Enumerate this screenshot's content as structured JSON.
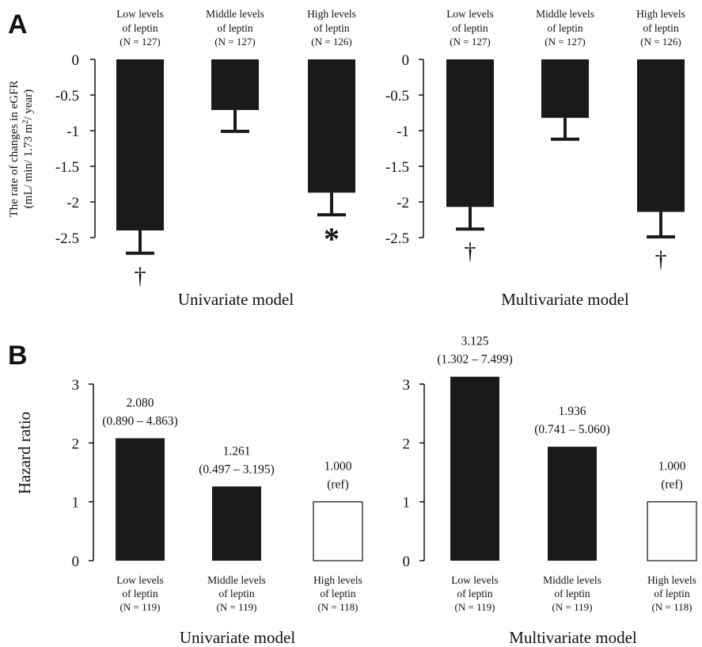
{
  "panels": {
    "A": {
      "label": "A",
      "ylabel_line1": "The rate of changes in eGFR",
      "ylabel_line2": "(mL/ min/ 1.73 m",
      "ylabel_sup": "2",
      "ylabel_line2_end": "/ year)"
    },
    "B": {
      "label": "B",
      "ylabel": "Hazard ratio"
    }
  },
  "chart_data": [
    {
      "type": "bar",
      "panel": "A",
      "title": "Univariate model",
      "categories": [
        {
          "line1": "Low levels",
          "line2": "of leptin",
          "n": "(N = 127)"
        },
        {
          "line1": "Middle levels",
          "line2": "of leptin",
          "n": "(N = 127)"
        },
        {
          "line1": "High levels",
          "line2": "of leptin",
          "n": "(N = 126)"
        }
      ],
      "values": [
        -2.4,
        -0.71,
        -1.87
      ],
      "error_end": [
        -2.72,
        -1.01,
        -2.18
      ],
      "markers": [
        "†",
        "",
        "*"
      ],
      "yticks": [
        "0",
        "-0.5",
        "-1",
        "-1.5",
        "-2",
        "-2.5"
      ],
      "ylim": [
        -2.5,
        0
      ],
      "bar_color": "#1a1a1a"
    },
    {
      "type": "bar",
      "panel": "A",
      "title": "Multivariate model",
      "categories": [
        {
          "line1": "Low levels",
          "line2": "of leptin",
          "n": "(N = 127)"
        },
        {
          "line1": "Middle levels",
          "line2": "of leptin",
          "n": "(N = 127)"
        },
        {
          "line1": "High levels",
          "line2": "of leptin",
          "n": "(N = 126)"
        }
      ],
      "values": [
        -2.07,
        -0.82,
        -2.14
      ],
      "error_end": [
        -2.38,
        -1.12,
        -2.49
      ],
      "markers": [
        "†",
        "",
        "†"
      ],
      "yticks": [
        "0",
        "-0.5",
        "-1",
        "-1.5",
        "-2",
        "-2.5"
      ],
      "ylim": [
        -2.5,
        0
      ],
      "bar_color": "#1a1a1a"
    },
    {
      "type": "bar",
      "panel": "B",
      "title": "Univariate model",
      "categories": [
        {
          "line1": "Low levels",
          "line2": "of leptin",
          "n": "(N = 119)"
        },
        {
          "line1": "Middle levels",
          "line2": "of leptin",
          "n": "(N = 119)"
        },
        {
          "line1": "High levels",
          "line2": "of leptin",
          "n": "(N = 118)"
        }
      ],
      "values": [
        2.08,
        1.261,
        1.0
      ],
      "value_labels": [
        "2.080",
        "1.261",
        "1.000"
      ],
      "ci_labels": [
        "(0.890 – 4.863)",
        "(0.497 – 3.195)",
        "(ref)"
      ],
      "reference": [
        false,
        false,
        true
      ],
      "yticks": [
        "0",
        "1",
        "2",
        "3"
      ],
      "ylim": [
        0,
        3
      ],
      "bar_color": "#1a1a1a"
    },
    {
      "type": "bar",
      "panel": "B",
      "title": "Multivariate model",
      "categories": [
        {
          "line1": "Low levels",
          "line2": "of leptin",
          "n": "(N = 119)"
        },
        {
          "line1": "Middle levels",
          "line2": "of leptin",
          "n": "(N = 119)"
        },
        {
          "line1": "High levels",
          "line2": "of leptin",
          "n": "(N = 118)"
        }
      ],
      "values": [
        3.125,
        1.936,
        1.0
      ],
      "value_labels": [
        "3.125",
        "1.936",
        "1.000"
      ],
      "ci_labels": [
        "(1.302 – 7.499)",
        "(0.741 – 5.060)",
        "(ref)"
      ],
      "reference": [
        false,
        false,
        true
      ],
      "yticks": [
        "0",
        "1",
        "2",
        "3"
      ],
      "ylim": [
        0,
        3
      ],
      "bar_color": "#1a1a1a"
    }
  ]
}
